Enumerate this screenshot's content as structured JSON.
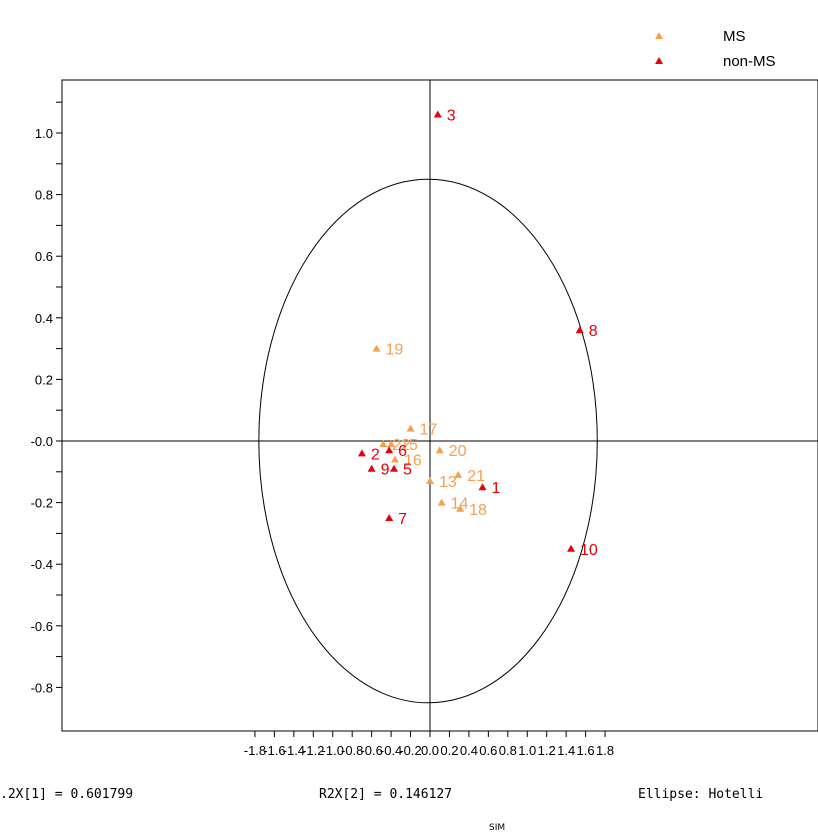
{
  "chart_data": {
    "type": "scatter",
    "title": "",
    "xlabel": "",
    "ylabel": "",
    "xlim": [
      -1.9,
      1.9
    ],
    "ylim": [
      -0.93,
      1.15
    ],
    "x_ticks": [
      "-1.8",
      "-1.6",
      "-1.4",
      "-1.2",
      "-1.0",
      "-0.8",
      "-0.6",
      "-0.4",
      "-0.2",
      "0.0",
      "0.2",
      "0.4",
      "0.6",
      "0.8",
      "1.0",
      "1.2",
      "1.4",
      "1.6",
      "1.8"
    ],
    "y_ticks": [
      "1.0",
      "0.8",
      "0.6",
      "0.4",
      "0.2",
      "-0.0",
      "-0.2",
      "-0.4",
      "-0.6",
      "-0.8"
    ],
    "x_tick_values": [
      -1.8,
      -1.6,
      -1.4,
      -1.2,
      -1.0,
      -0.8,
      -0.6,
      -0.4,
      -0.2,
      0.0,
      0.2,
      0.4,
      0.6,
      0.8,
      1.0,
      1.2,
      1.4,
      1.6,
      1.8
    ],
    "y_tick_values": [
      1.0,
      0.8,
      0.6,
      0.4,
      0.2,
      0.0,
      -0.2,
      -0.4,
      -0.6,
      -0.8
    ],
    "legend_position": "top-right",
    "ellipse": {
      "cx": -0.02,
      "cy": 0.0,
      "rx": 1.74,
      "ry": 0.85
    },
    "series": [
      {
        "name": "MS",
        "color": "#f5a050",
        "points": [
          {
            "label": "19",
            "x": -0.55,
            "y": 0.3
          },
          {
            "label": "17",
            "x": -0.2,
            "y": 0.04
          },
          {
            "label": "20",
            "x": 0.1,
            "y": -0.03
          },
          {
            "label": "21",
            "x": 0.29,
            "y": -0.11
          },
          {
            "label": "13",
            "x": 0.0,
            "y": -0.13
          },
          {
            "label": "14",
            "x": 0.12,
            "y": -0.2
          },
          {
            "label": "18",
            "x": 0.31,
            "y": -0.22
          },
          {
            "label": "16",
            "x": -0.36,
            "y": -0.06
          },
          {
            "label": "15",
            "x": -0.4,
            "y": -0.01
          },
          {
            "label": "22",
            "x": -0.48,
            "y": -0.01
          }
        ]
      },
      {
        "name": "non-MS",
        "color": "#e8000a",
        "points": [
          {
            "label": "3",
            "x": 0.08,
            "y": 1.06
          },
          {
            "label": "8",
            "x": 1.54,
            "y": 0.36
          },
          {
            "label": "1",
            "x": 0.54,
            "y": -0.15
          },
          {
            "label": "10",
            "x": 1.45,
            "y": -0.35
          },
          {
            "label": "2",
            "x": -0.7,
            "y": -0.04
          },
          {
            "label": "9",
            "x": -0.6,
            "y": -0.09
          },
          {
            "label": "6",
            "x": -0.42,
            "y": -0.03
          },
          {
            "label": "5",
            "x": -0.37,
            "y": -0.09
          },
          {
            "label": "7",
            "x": -0.42,
            "y": -0.25
          }
        ]
      }
    ]
  },
  "footer": {
    "r2x1": ".2X[1] = 0.601799",
    "r2x2": "R2X[2] = 0.146127",
    "ellipse": "Ellipse: Hotelli",
    "simca": "SIM"
  }
}
